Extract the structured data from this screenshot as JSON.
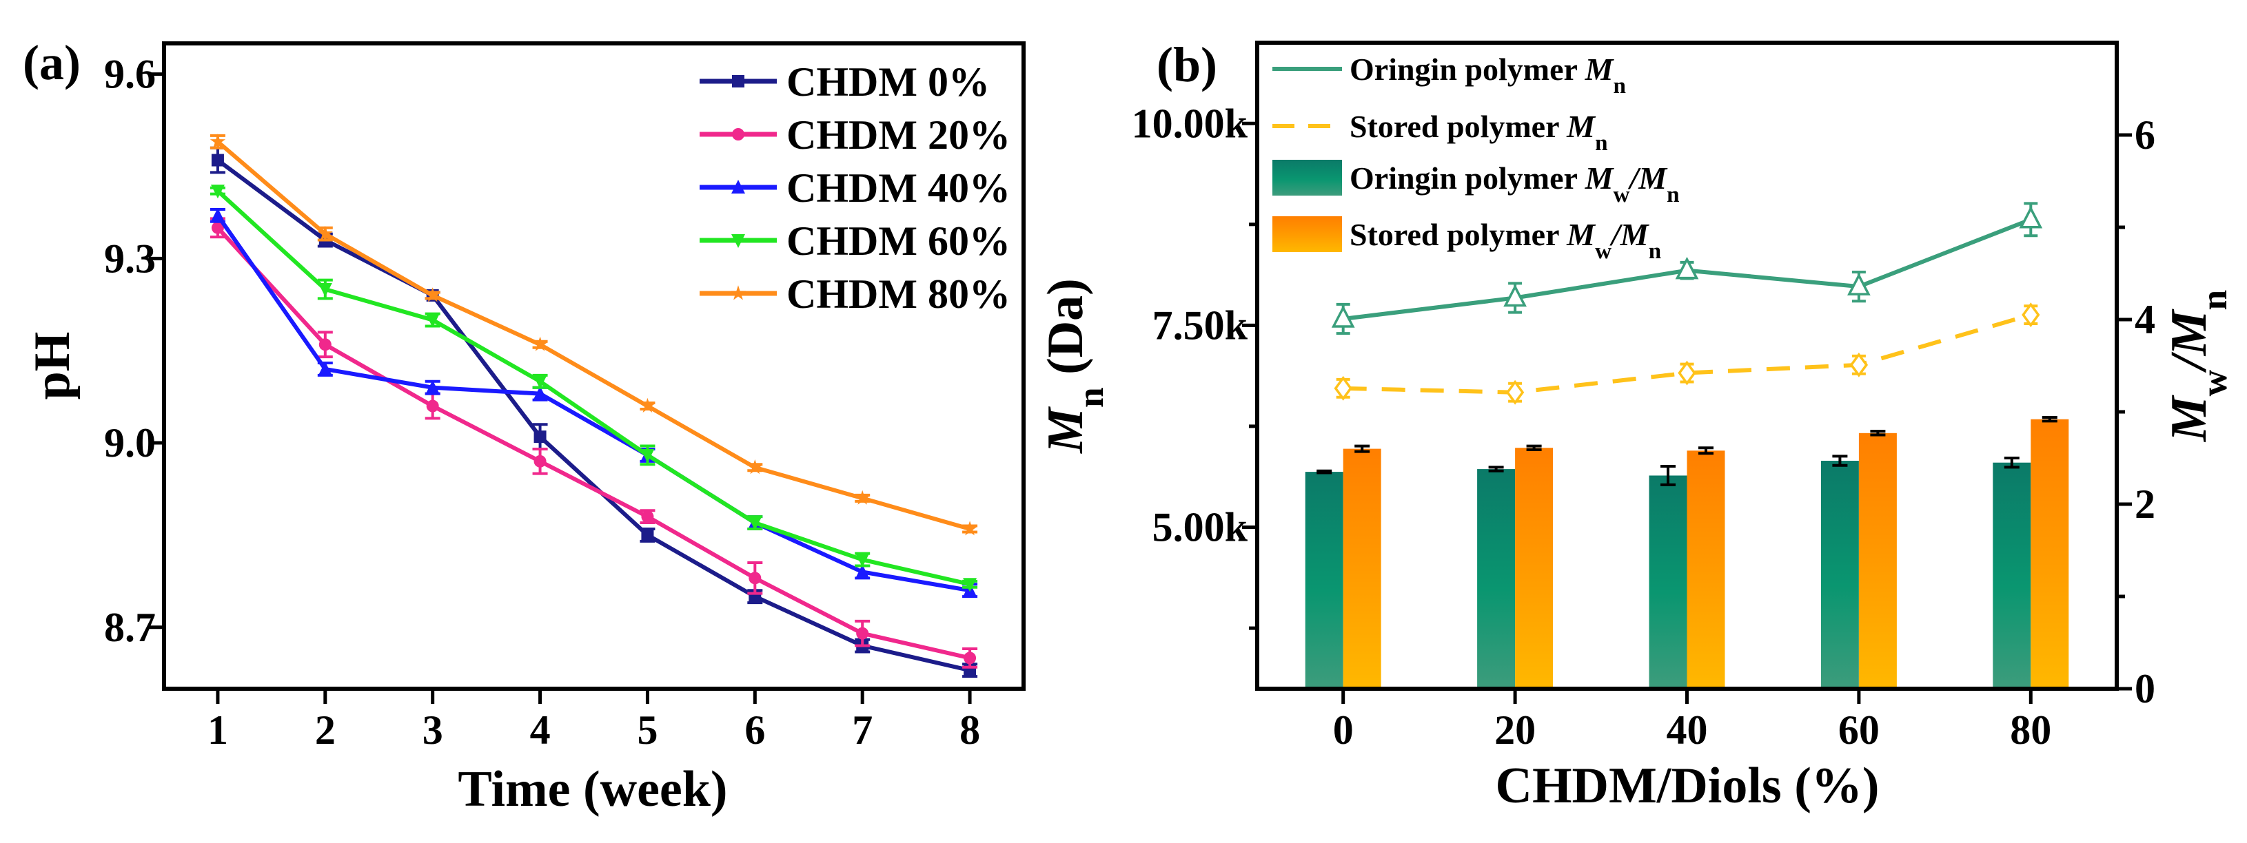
{
  "chart_data": [
    {
      "type": "line",
      "panel_label": "(a)",
      "xlabel": [
        [
          "t",
          "Time (week)"
        ]
      ],
      "ylabel": [
        [
          "t",
          "pH"
        ]
      ],
      "xlim": [
        0.5,
        8.5
      ],
      "ylim": [
        8.6,
        9.65
      ],
      "xticks": [
        1,
        2,
        3,
        4,
        5,
        6,
        7,
        8
      ],
      "yticks": [
        8.7,
        9.0,
        9.3,
        9.6
      ],
      "ytick_labels": [
        "8.7",
        "9.0",
        "9.3",
        "9.6"
      ],
      "legend_position": "top-right",
      "x": [
        1,
        2,
        3,
        4,
        5,
        6,
        7,
        8
      ],
      "series": [
        {
          "name": "CHDM 0%",
          "color": "#1c1c8a",
          "marker": "square",
          "values": [
            9.46,
            9.33,
            9.24,
            9.01,
            8.85,
            8.75,
            8.67,
            8.63
          ],
          "errors": [
            0.02,
            0.01,
            0.005,
            0.02,
            0.01,
            0.01,
            0.01,
            0.01
          ]
        },
        {
          "name": "CHDM 20%",
          "color": "#f0288c",
          "marker": "circle",
          "values": [
            9.35,
            9.16,
            9.06,
            8.97,
            8.88,
            8.78,
            8.69,
            8.65
          ],
          "errors": [
            0.015,
            0.02,
            0.02,
            0.02,
            0.01,
            0.025,
            0.02,
            0.015
          ]
        },
        {
          "name": "CHDM 40%",
          "color": "#1a1aff",
          "marker": "triangle-up",
          "values": [
            9.37,
            9.12,
            9.09,
            9.08,
            8.98,
            8.87,
            8.79,
            8.76
          ],
          "errors": [
            0.01,
            0.01,
            0.01,
            0.01,
            0.01,
            0.01,
            0.01,
            0.01
          ]
        },
        {
          "name": "CHDM 60%",
          "color": "#22e622",
          "marker": "triangle-down",
          "values": [
            9.41,
            9.25,
            9.2,
            9.1,
            8.98,
            8.87,
            8.81,
            8.77
          ],
          "errors": [
            0.005,
            0.015,
            0.01,
            0.01,
            0.015,
            0.01,
            0.01,
            0.005
          ]
        },
        {
          "name": "CHDM 80%",
          "color": "#ff8c1a",
          "marker": "star",
          "values": [
            9.49,
            9.34,
            9.24,
            9.16,
            9.06,
            8.96,
            8.91,
            8.86
          ],
          "errors": [
            0.01,
            0.01,
            0.005,
            0.005,
            0.005,
            0.005,
            0.005,
            0.005
          ]
        }
      ]
    },
    {
      "type": "bar+line",
      "panel_label": "(b)",
      "xlabel": [
        [
          "t",
          "CHDM/Diols (%)"
        ]
      ],
      "ylabel_left": [
        [
          "i",
          "M"
        ],
        [
          "s",
          "n"
        ],
        [
          "t",
          " (Da)"
        ]
      ],
      "ylabel_right": [
        [
          "i",
          "M"
        ],
        [
          "s",
          "w"
        ],
        [
          "i",
          "/M"
        ],
        [
          "s",
          "n"
        ]
      ],
      "categories": [
        0,
        20,
        40,
        60,
        80
      ],
      "xtick_labels": [
        "0",
        "20",
        "40",
        "60",
        "80"
      ],
      "xlim": [
        -10,
        90
      ],
      "ylim_left": [
        3000,
        11000
      ],
      "yticks_left": [
        5000,
        7500,
        10000
      ],
      "ytick_labels_left": [
        "5.00k",
        "7.50k",
        "10.00k"
      ],
      "yminor_left": [
        3750,
        6250,
        8750
      ],
      "ylim_right": [
        0,
        7
      ],
      "yticks_right": [
        0,
        2,
        4,
        6
      ],
      "ytick_labels_right": [
        "0",
        "2",
        "4",
        "6"
      ],
      "yminor_right": [
        1,
        3,
        5
      ],
      "legend_position": "top-left",
      "lines": [
        {
          "label": [
            [
              "t",
              "Oringin polymer "
            ],
            [
              "i",
              "M"
            ],
            [
              "s",
              "n"
            ]
          ],
          "axis": "left",
          "color": "#3a9f7c",
          "style": "solid",
          "marker": "open-triangle",
          "values": [
            7580,
            7840,
            8180,
            7980,
            8810
          ],
          "errors": [
            180,
            180,
            100,
            180,
            200
          ]
        },
        {
          "label": [
            [
              "t",
              "Stored polymer "
            ],
            [
              "i",
              "M"
            ],
            [
              "s",
              "n"
            ]
          ],
          "axis": "left",
          "color": "#ffc21a",
          "style": "dashed",
          "marker": "open-diamond",
          "values": [
            6720,
            6670,
            6910,
            7010,
            7630
          ],
          "errors": [
            110,
            110,
            110,
            110,
            110
          ]
        }
      ],
      "bars": [
        {
          "label": [
            [
              "t",
              "Oringin polymer "
            ],
            [
              "i",
              "M"
            ],
            [
              "s",
              "w"
            ],
            [
              "i",
              "/M"
            ],
            [
              "s",
              "n"
            ]
          ],
          "axis": "right",
          "color_top": "#0b7a68",
          "color_mid": "#0a9670",
          "color_bottom": "#3d9c7c",
          "values": [
            2.35,
            2.38,
            2.31,
            2.47,
            2.45
          ],
          "errors": [
            0.01,
            0.02,
            0.1,
            0.05,
            0.05
          ]
        },
        {
          "label": [
            [
              "t",
              "Stored polymer "
            ],
            [
              "i",
              "M"
            ],
            [
              "s",
              "w"
            ],
            [
              "i",
              "/M"
            ],
            [
              "s",
              "n"
            ]
          ],
          "axis": "right",
          "color_top": "#ff7f00",
          "color_mid": "#ff9a00",
          "color_bottom": "#ffb800",
          "values": [
            2.6,
            2.61,
            2.58,
            2.77,
            2.92
          ],
          "errors": [
            0.03,
            0.02,
            0.03,
            0.02,
            0.02
          ]
        }
      ]
    }
  ]
}
